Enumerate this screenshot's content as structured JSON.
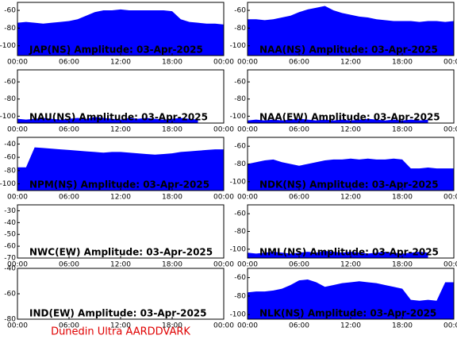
{
  "chart_data": [
    {
      "type": "area",
      "title": "JAP(NS) Amplitude: 03-Apr-2025",
      "color": "#0000ff",
      "x": [
        0,
        1,
        2,
        3,
        4,
        5,
        6,
        7,
        8,
        9,
        10,
        11,
        12,
        13,
        14,
        15,
        16,
        17,
        18,
        19,
        20,
        21,
        22,
        23,
        24
      ],
      "values": [
        -74,
        -73,
        -74,
        -75,
        -74,
        -73,
        -72,
        -70,
        -66,
        -62,
        -60,
        -60,
        -59,
        -60,
        -60,
        -60,
        -60,
        -60,
        -61,
        -70,
        -73,
        -74,
        -75,
        -75,
        -76
      ],
      "xlim": [
        0,
        24
      ],
      "xticks": [
        {
          "value": 0,
          "label": "00:00"
        },
        {
          "value": 6,
          "label": "06:00"
        },
        {
          "value": 12,
          "label": "12:00"
        },
        {
          "value": 18,
          "label": "18:00"
        },
        {
          "value": 24,
          "label": "00:00"
        }
      ],
      "ylim": [
        -111,
        -51
      ],
      "yticks": [
        -100,
        -80,
        -60
      ]
    },
    {
      "type": "area",
      "title": "NAA(NS) Amplitude: 03-Apr-2025",
      "color": "#0000ff",
      "x": [
        0,
        1,
        2,
        3,
        4,
        5,
        6,
        7,
        8,
        9,
        10,
        11,
        12,
        13,
        14,
        15,
        16,
        17,
        18,
        19,
        20,
        21,
        22,
        23,
        24
      ],
      "values": [
        -70,
        -70,
        -71,
        -70,
        -68,
        -66,
        -62,
        -59,
        -57,
        -55,
        -60,
        -63,
        -65,
        -67,
        -68,
        -70,
        -71,
        -72,
        -72,
        -72,
        -73,
        -72,
        -72,
        -73,
        -72
      ],
      "xlim": [
        0,
        24
      ],
      "xticks": [
        {
          "value": 0,
          "label": "00:00"
        },
        {
          "value": 6,
          "label": "06:00"
        },
        {
          "value": 12,
          "label": "12:00"
        },
        {
          "value": 18,
          "label": "18:00"
        },
        {
          "value": 24,
          "label": "00:00"
        }
      ],
      "ylim": [
        -111,
        -51
      ],
      "yticks": [
        -100,
        -80,
        -60
      ]
    },
    {
      "type": "area",
      "title": "NAU(NS) Amplitude: 03-Apr-2025",
      "color": "#0000ff",
      "x": [
        0,
        1,
        2,
        3,
        4,
        5,
        6,
        7,
        8,
        9,
        10,
        11,
        12,
        13,
        14,
        15,
        16,
        17,
        18,
        19,
        20,
        21,
        22,
        23,
        24
      ],
      "values": [
        -103,
        -104,
        -103,
        -102,
        -103,
        -104,
        -103,
        -102,
        -103,
        -101,
        -102,
        -103,
        -104,
        -102,
        -103,
        -102,
        -103,
        -104,
        -103,
        -102,
        -103,
        -104,
        null,
        null,
        null
      ],
      "xlim": [
        0,
        24
      ],
      "xticks": [
        {
          "value": 0,
          "label": "00:00"
        },
        {
          "value": 6,
          "label": "06:00"
        },
        {
          "value": 12,
          "label": "12:00"
        },
        {
          "value": 18,
          "label": "18:00"
        },
        {
          "value": 24,
          "label": "00:00"
        }
      ],
      "ylim": [
        -108,
        -46
      ],
      "yticks": [
        -100,
        -80,
        -60
      ]
    },
    {
      "type": "area",
      "title": "NAA(EW) Amplitude: 03-Apr-2025",
      "color": "#0000ff",
      "x": [
        0,
        1,
        2,
        3,
        4,
        5,
        6,
        7,
        8,
        9,
        10,
        11,
        12,
        13,
        14,
        15,
        16,
        17,
        18,
        19,
        20,
        21,
        22,
        23,
        24
      ],
      "values": [
        -105,
        -104,
        -105,
        -104,
        -105,
        -104,
        -103,
        -104,
        -105,
        -104,
        -105,
        -104,
        -105,
        -104,
        -103,
        -104,
        -105,
        -104,
        -105,
        -104,
        -105,
        -104,
        null,
        null,
        null
      ],
      "xlim": [
        0,
        24
      ],
      "xticks": [
        {
          "value": 0,
          "label": "00:00"
        },
        {
          "value": 6,
          "label": "06:00"
        },
        {
          "value": 12,
          "label": "12:00"
        },
        {
          "value": 18,
          "label": "18:00"
        },
        {
          "value": 24,
          "label": "00:00"
        }
      ],
      "ylim": [
        -108,
        -46
      ],
      "yticks": [
        -100,
        -80,
        -60
      ]
    },
    {
      "type": "area",
      "title": "NPM(NS) Amplitude: 03-Apr-2025",
      "color": "#0000ff",
      "x": [
        0,
        1,
        2,
        3,
        4,
        5,
        6,
        7,
        8,
        9,
        10,
        11,
        12,
        13,
        14,
        15,
        16,
        17,
        18,
        19,
        20,
        21,
        22,
        23,
        24
      ],
      "values": [
        -75,
        -75,
        -45,
        -46,
        -47,
        -48,
        -49,
        -50,
        -51,
        -52,
        -53,
        -52,
        -52,
        -53,
        -54,
        -55,
        -56,
        -55,
        -54,
        -52,
        -51,
        -50,
        -49,
        -48,
        -48
      ],
      "xlim": [
        0,
        24
      ],
      "xticks": [
        {
          "value": 0,
          "label": "00:00"
        },
        {
          "value": 6,
          "label": "06:00"
        },
        {
          "value": 12,
          "label": "12:00"
        },
        {
          "value": 18,
          "label": "18:00"
        },
        {
          "value": 24,
          "label": "00:00"
        }
      ],
      "ylim": [
        -110,
        -30
      ],
      "yticks": [
        -100,
        -80,
        -60,
        -40
      ]
    },
    {
      "type": "area",
      "title": "NDK(NS) Amplitude: 03-Apr-2025",
      "color": "#0000ff",
      "x": [
        0,
        1,
        2,
        3,
        4,
        5,
        6,
        7,
        8,
        9,
        10,
        11,
        12,
        13,
        14,
        15,
        16,
        17,
        18,
        19,
        20,
        21,
        22,
        23,
        24
      ],
      "values": [
        -80,
        -78,
        -76,
        -75,
        -78,
        -80,
        -82,
        -80,
        -78,
        -76,
        -75,
        -75,
        -74,
        -75,
        -74,
        -75,
        -75,
        -74,
        -75,
        -85,
        -85,
        -84,
        -85,
        -85,
        -85
      ],
      "xlim": [
        0,
        24
      ],
      "xticks": [
        {
          "value": 0,
          "label": "00:00"
        },
        {
          "value": 6,
          "label": "06:00"
        },
        {
          "value": 12,
          "label": "12:00"
        },
        {
          "value": 18,
          "label": "18:00"
        },
        {
          "value": 24,
          "label": "00:00"
        }
      ],
      "ylim": [
        -110,
        -50
      ],
      "yticks": [
        -100,
        -80,
        -60
      ]
    },
    {
      "type": "area",
      "title": "NWC(EW) Amplitude: 03-Apr-2025",
      "color": "#0000ff",
      "x": [
        0,
        1,
        2,
        3,
        4,
        5,
        6,
        7,
        8,
        9,
        10,
        11,
        12,
        13,
        14,
        15,
        16,
        17,
        18,
        19,
        20,
        21,
        22,
        23,
        24
      ],
      "values": [
        null,
        null,
        null,
        null,
        null,
        null,
        null,
        null,
        null,
        null,
        null,
        null,
        null,
        null,
        null,
        null,
        null,
        null,
        null,
        null,
        null,
        null,
        null,
        null,
        null
      ],
      "xlim": [
        0,
        24
      ],
      "xticks": [
        {
          "value": 0,
          "label": "00:00"
        },
        {
          "value": 6,
          "label": "06:00"
        },
        {
          "value": 12,
          "label": "12:00"
        },
        {
          "value": 18,
          "label": "18:00"
        },
        {
          "value": 24,
          "label": "00:00"
        }
      ],
      "ylim": [
        -70,
        -25
      ],
      "yticks": [
        -70,
        -60,
        -50,
        -40,
        -30
      ]
    },
    {
      "type": "area",
      "title": "NML(NS) Amplitude: 03-Apr-2025",
      "color": "#0000ff",
      "x": [
        0,
        1,
        2,
        3,
        4,
        5,
        6,
        7,
        8,
        9,
        10,
        11,
        12,
        13,
        14,
        15,
        16,
        17,
        18,
        19,
        20,
        21,
        22,
        23,
        24
      ],
      "values": [
        -104,
        -105,
        -104,
        -103,
        -104,
        -105,
        -104,
        -103,
        -104,
        -102,
        -103,
        -104,
        -103,
        -104,
        -105,
        -104,
        -103,
        -104,
        -105,
        -104,
        -103,
        -104,
        null,
        null,
        null
      ],
      "xlim": [
        0,
        24
      ],
      "xticks": [
        {
          "value": 0,
          "label": "00:00"
        },
        {
          "value": 6,
          "label": "06:00"
        },
        {
          "value": 12,
          "label": "12:00"
        },
        {
          "value": 18,
          "label": "18:00"
        },
        {
          "value": 24,
          "label": "00:00"
        }
      ],
      "ylim": [
        -110,
        -50
      ],
      "yticks": [
        -100,
        -80,
        -60
      ]
    },
    {
      "type": "area",
      "title": "IND(EW) Amplitude: 03-Apr-2025",
      "color": "#0000ff",
      "x": [
        0,
        1,
        2,
        3,
        4,
        5,
        6,
        7,
        8,
        9,
        10,
        11,
        12,
        13,
        14,
        15,
        16,
        17,
        18,
        19,
        20,
        21,
        22,
        23,
        24
      ],
      "values": [
        null,
        null,
        null,
        null,
        null,
        null,
        null,
        null,
        null,
        null,
        null,
        null,
        null,
        null,
        null,
        null,
        null,
        null,
        null,
        null,
        null,
        null,
        null,
        null,
        null
      ],
      "xlim": [
        0,
        24
      ],
      "xticks": [
        {
          "value": 0,
          "label": "00:00"
        },
        {
          "value": 6,
          "label": "06:00"
        },
        {
          "value": 12,
          "label": "12:00"
        },
        {
          "value": 18,
          "label": "18:00"
        },
        {
          "value": 24,
          "label": "00:00"
        }
      ],
      "ylim": [
        -80,
        -40
      ],
      "yticks": [
        -80,
        -60,
        -40
      ]
    },
    {
      "type": "area",
      "title": "NLK(NS) Amplitude: 03-Apr-2025",
      "color": "#0000ff",
      "x": [
        0,
        1,
        2,
        3,
        4,
        5,
        6,
        7,
        8,
        9,
        10,
        11,
        12,
        13,
        14,
        15,
        16,
        17,
        18,
        19,
        20,
        21,
        22,
        23,
        24
      ],
      "values": [
        -76,
        -75,
        -75,
        -74,
        -72,
        -68,
        -63,
        -62,
        -65,
        -70,
        -68,
        -66,
        -65,
        -64,
        -65,
        -66,
        -68,
        -70,
        -72,
        -84,
        -85,
        -84,
        -85,
        -65,
        -65
      ],
      "xlim": [
        0,
        24
      ],
      "xticks": [
        {
          "value": 0,
          "label": "00:00"
        },
        {
          "value": 6,
          "label": "06:00"
        },
        {
          "value": 12,
          "label": "12:00"
        },
        {
          "value": 18,
          "label": "18:00"
        },
        {
          "value": 24,
          "label": "00:00"
        }
      ],
      "ylim": [
        -105,
        -50
      ],
      "yticks": [
        -100,
        -80,
        -60
      ]
    }
  ],
  "footer": "Dunedin Ultra AARDDVARK"
}
